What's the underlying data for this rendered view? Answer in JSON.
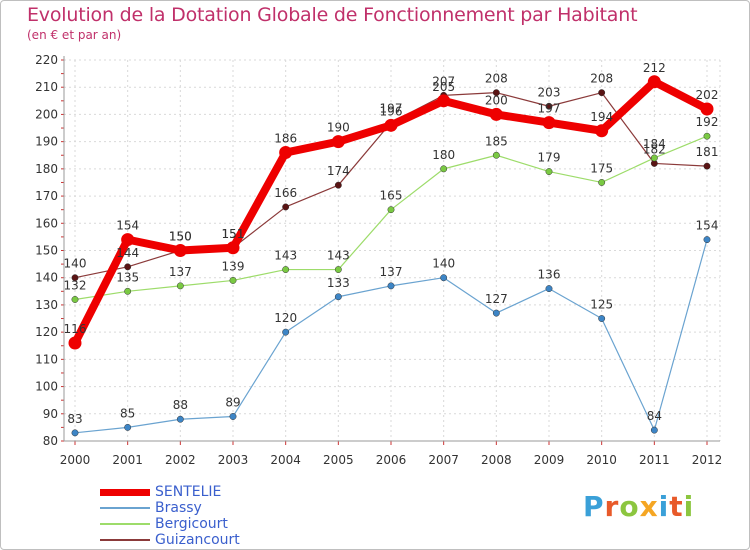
{
  "title": "Evolution de la Dotation Globale de Fonctionnement par Habitant",
  "subtitle": "(en € et par an)",
  "logo_text": "Proxiti",
  "logo_colors": [
    "#3aa0d8",
    "#e85a2a",
    "#8cc63f",
    "#f5a623",
    "#3aa0d8",
    "#e85a2a",
    "#8cc63f"
  ],
  "chart_data": {
    "type": "line",
    "categories": [
      "2000",
      "2001",
      "2002",
      "2003",
      "2004",
      "2005",
      "2006",
      "2007",
      "2008",
      "2009",
      "2010",
      "2011",
      "2012"
    ],
    "yticks": [
      80,
      90,
      100,
      110,
      120,
      130,
      140,
      150,
      160,
      170,
      180,
      190,
      200,
      210,
      220
    ],
    "ylim": [
      80,
      220
    ],
    "grid": true,
    "series": [
      {
        "name": "Guizancourt",
        "color": "#8b3a3a",
        "dot": "#5a1414",
        "width": 1.2,
        "values": [
          140,
          144,
          150,
          151,
          166,
          174,
          197,
          207,
          208,
          203,
          208,
          182,
          181
        ],
        "labels": [
          "140",
          "144",
          "150",
          "151",
          "166",
          "174",
          "197",
          "207",
          "208",
          "203",
          "208",
          "182",
          "181"
        ]
      },
      {
        "name": "Bergicourt",
        "color": "#9ddc6a",
        "dot": "#7ac943",
        "width": 1.2,
        "values": [
          132,
          135,
          137,
          139,
          143,
          143,
          165,
          180,
          185,
          179,
          175,
          184,
          192
        ],
        "labels": [
          "132",
          "135",
          "137",
          "139",
          "143",
          "143",
          "165",
          "180",
          "185",
          "179",
          "175",
          "184",
          "192"
        ]
      },
      {
        "name": "Brassy",
        "color": "#6aa3d0",
        "dot": "#3d85c6",
        "width": 1.2,
        "values": [
          83,
          85,
          88,
          89,
          120,
          133,
          137,
          140,
          127,
          136,
          125,
          84,
          154
        ],
        "labels": [
          "83",
          "85",
          "88",
          "89",
          "120",
          "133",
          "137",
          "140",
          "127",
          "136",
          "125",
          "84",
          "154"
        ]
      },
      {
        "name": "SENTELIE",
        "color": "#ee0000",
        "dot": "#ee0000",
        "width": 8,
        "values": [
          116,
          154,
          150,
          151,
          186,
          190,
          196,
          205,
          200,
          197,
          194,
          212,
          202
        ],
        "labels": [
          "116",
          "154",
          "150",
          "151",
          "186",
          "190",
          "196",
          "205",
          "200",
          "197",
          "194",
          "212",
          "202"
        ]
      }
    ],
    "legend": [
      {
        "name": "SENTELIE",
        "color": "#ee0000",
        "width": 7
      },
      {
        "name": "Brassy",
        "color": "#6aa3d0",
        "width": 2
      },
      {
        "name": "Bergicourt",
        "color": "#9ddc6a",
        "width": 2
      },
      {
        "name": "Guizancourt",
        "color": "#8b3a3a",
        "width": 2
      }
    ]
  }
}
